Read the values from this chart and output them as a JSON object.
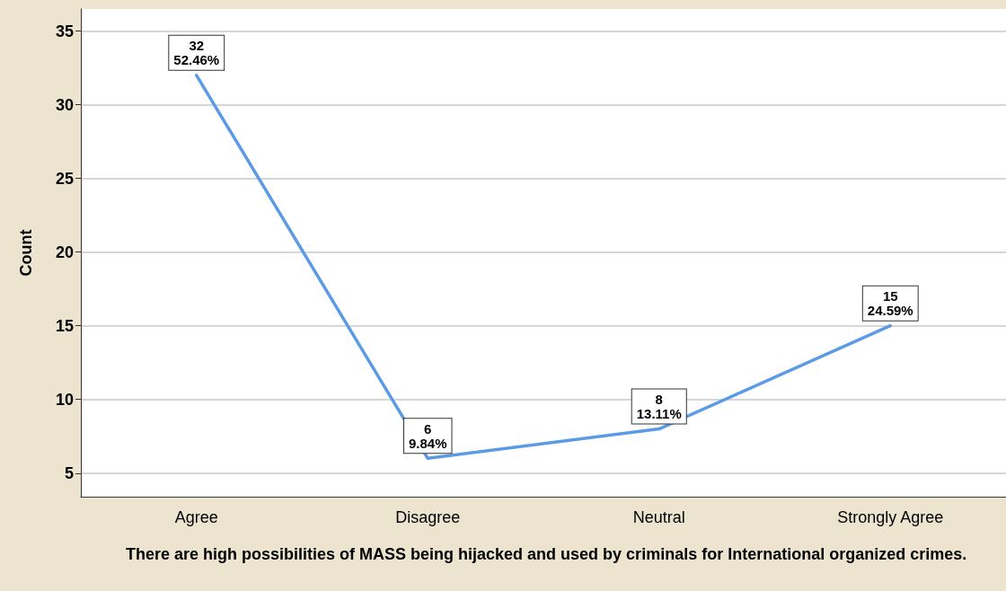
{
  "chart_data": {
    "type": "line",
    "xlabel": "There are high possibilities of MASS being hijacked and used by criminals for International organized crimes.",
    "ylabel": "Count",
    "categories": [
      "Agree",
      "Disagree",
      "Neutral",
      "Strongly Agree"
    ],
    "series": [
      {
        "color": "#5b9be6",
        "values": [
          32,
          6,
          8,
          15
        ],
        "value_labels": [
          "32\n52.46%",
          "6\n9.84%",
          "8\n13.11%",
          "15\n24.59%"
        ]
      }
    ],
    "ylim": [
      3.4,
      36.5
    ],
    "yticks": [
      5,
      10,
      15,
      20,
      25,
      30,
      35
    ],
    "grid": "y",
    "line_style": "solid"
  }
}
